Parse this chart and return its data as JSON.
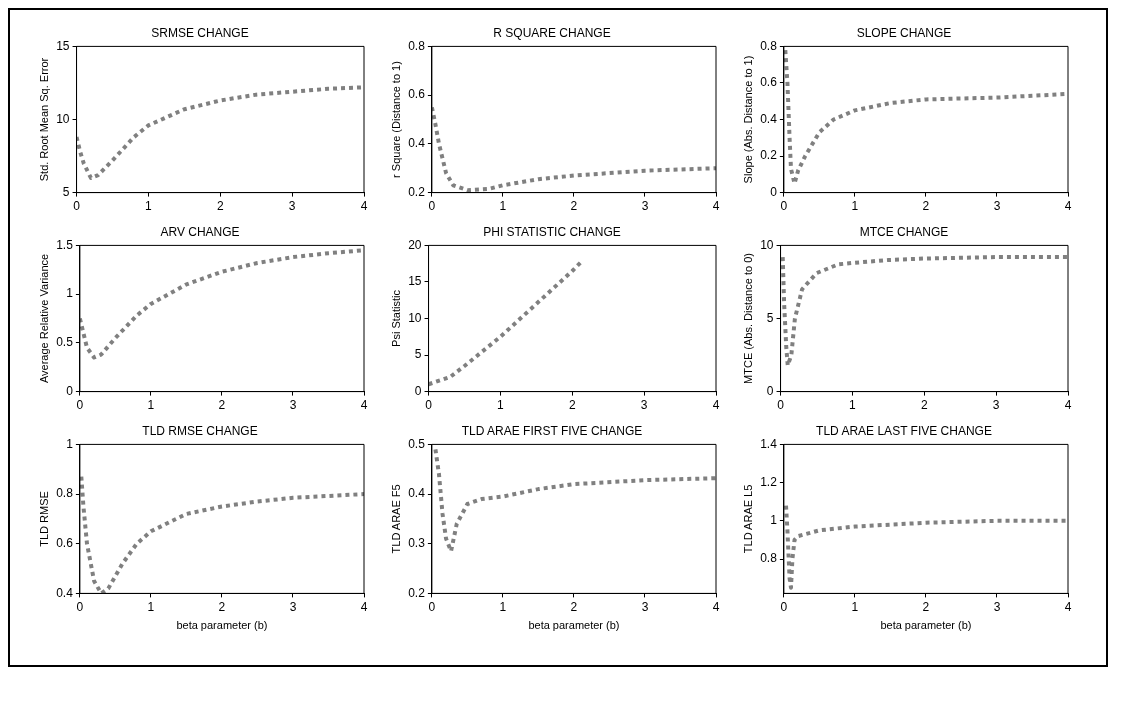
{
  "chart_data": [
    {
      "type": "line",
      "title": "SRMSE CHANGE",
      "ylabel": "Std. Root Mean Sq. Error",
      "xlim": [
        0,
        4
      ],
      "xticks": [
        0,
        1,
        2,
        3,
        4
      ],
      "ylim": [
        5,
        15
      ],
      "yticks": [
        5,
        10,
        15
      ],
      "grid": false,
      "line_style": "dotted",
      "x": [
        0,
        0.05,
        0.1,
        0.2,
        0.3,
        0.5,
        0.8,
        1,
        1.5,
        2,
        2.5,
        3,
        3.5,
        4
      ],
      "series": [
        {
          "color": "#808080",
          "values": [
            8.8,
            7.8,
            7.0,
            6.0,
            6.2,
            7.2,
            8.8,
            9.6,
            10.7,
            11.3,
            11.7,
            11.9,
            12.1,
            12.2
          ]
        }
      ]
    },
    {
      "type": "line",
      "title": "R SQUARE CHANGE",
      "ylabel": "r Square (Distance to 1)",
      "xlim": [
        0,
        4
      ],
      "xticks": [
        0,
        1,
        2,
        3,
        4
      ],
      "ylim": [
        0.2,
        0.8
      ],
      "yticks": [
        0.2,
        0.4,
        0.6,
        0.8
      ],
      "grid": false,
      "line_style": "dotted",
      "x": [
        0,
        0.05,
        0.1,
        0.2,
        0.3,
        0.5,
        0.8,
        1,
        1.5,
        2,
        2.5,
        3,
        3.5,
        4
      ],
      "series": [
        {
          "color": "#808080",
          "values": [
            0.55,
            0.48,
            0.4,
            0.28,
            0.23,
            0.21,
            0.215,
            0.23,
            0.255,
            0.27,
            0.28,
            0.29,
            0.295,
            0.3
          ]
        }
      ]
    },
    {
      "type": "line",
      "title": "SLOPE CHANGE",
      "ylabel": "Slope (Abs. Distance to 1)",
      "xlim": [
        0,
        4
      ],
      "xticks": [
        0,
        1,
        2,
        3,
        4
      ],
      "ylim": [
        0,
        0.8
      ],
      "yticks": [
        0,
        0.2,
        0.4,
        0.6,
        0.8
      ],
      "grid": false,
      "line_style": "dotted",
      "x": [
        0.02,
        0.05,
        0.08,
        0.1,
        0.15,
        0.2,
        0.3,
        0.5,
        0.7,
        1,
        1.5,
        2,
        3,
        4
      ],
      "series": [
        {
          "color": "#808080",
          "values": [
            0.78,
            0.6,
            0.3,
            0.13,
            0.05,
            0.12,
            0.2,
            0.33,
            0.4,
            0.45,
            0.49,
            0.51,
            0.52,
            0.54
          ]
        }
      ]
    },
    {
      "type": "line",
      "title": "ARV CHANGE",
      "ylabel": "Average Relative Variance",
      "xlim": [
        0,
        4
      ],
      "xticks": [
        0,
        1,
        2,
        3,
        4
      ],
      "ylim": [
        0,
        1.5
      ],
      "yticks": [
        0,
        0.5,
        1,
        1.5
      ],
      "grid": false,
      "line_style": "dotted",
      "x": [
        0,
        0.05,
        0.1,
        0.2,
        0.3,
        0.5,
        0.8,
        1,
        1.5,
        2,
        2.5,
        3,
        3.5,
        4
      ],
      "series": [
        {
          "color": "#808080",
          "values": [
            0.75,
            0.6,
            0.45,
            0.35,
            0.38,
            0.55,
            0.78,
            0.9,
            1.1,
            1.23,
            1.32,
            1.38,
            1.42,
            1.45
          ]
        }
      ]
    },
    {
      "type": "line",
      "title": "PHI STATISTIC CHANGE",
      "ylabel": "Psi Statistic",
      "xlim": [
        0,
        4
      ],
      "xticks": [
        0,
        1,
        2,
        3,
        4
      ],
      "ylim": [
        0,
        20
      ],
      "yticks": [
        0,
        5,
        10,
        15,
        20
      ],
      "grid": false,
      "line_style": "dotted",
      "x": [
        0,
        0.3,
        0.5,
        1,
        1.5,
        2,
        2.15
      ],
      "series": [
        {
          "color": "#808080",
          "values": [
            1,
            2,
            3.5,
            7.5,
            12,
            16.5,
            18
          ]
        }
      ]
    },
    {
      "type": "line",
      "title": "MTCE CHANGE",
      "ylabel": "MTCE (Abs. Distance to 0)",
      "xlim": [
        0,
        4
      ],
      "xticks": [
        0,
        1,
        2,
        3,
        4
      ],
      "ylim": [
        0,
        10
      ],
      "yticks": [
        0,
        5,
        10
      ],
      "grid": false,
      "line_style": "dotted",
      "x": [
        0.03,
        0.05,
        0.08,
        0.1,
        0.15,
        0.2,
        0.3,
        0.5,
        0.8,
        1,
        1.5,
        2,
        3,
        4
      ],
      "series": [
        {
          "color": "#808080",
          "values": [
            9.2,
            6,
            3,
            1.8,
            2.5,
            5,
            7,
            8.1,
            8.7,
            8.8,
            9,
            9.1,
            9.2,
            9.2
          ]
        }
      ]
    },
    {
      "type": "line",
      "title": "TLD RMSE CHANGE",
      "ylabel": "TLD RMSE",
      "xlabel": "beta parameter (b)",
      "xlim": [
        0,
        4
      ],
      "xticks": [
        0,
        1,
        2,
        3,
        4
      ],
      "ylim": [
        0.4,
        1
      ],
      "yticks": [
        0.4,
        0.6,
        0.8,
        1
      ],
      "grid": false,
      "line_style": "dotted",
      "x": [
        0.02,
        0.05,
        0.1,
        0.2,
        0.3,
        0.4,
        0.6,
        0.8,
        1,
        1.5,
        2,
        2.5,
        3,
        4
      ],
      "series": [
        {
          "color": "#808080",
          "values": [
            0.87,
            0.75,
            0.6,
            0.45,
            0.4,
            0.42,
            0.52,
            0.6,
            0.65,
            0.72,
            0.75,
            0.77,
            0.785,
            0.8
          ]
        }
      ]
    },
    {
      "type": "line",
      "title": "TLD ARAE FIRST FIVE CHANGE",
      "ylabel": "TLD ARAE F5",
      "xlabel": "beta parameter (b)",
      "xlim": [
        0,
        4
      ],
      "xticks": [
        0,
        1,
        2,
        3,
        4
      ],
      "ylim": [
        0.2,
        0.5
      ],
      "yticks": [
        0.2,
        0.3,
        0.4,
        0.5
      ],
      "grid": false,
      "line_style": "dotted",
      "x": [
        0.05,
        0.1,
        0.15,
        0.2,
        0.27,
        0.35,
        0.5,
        0.7,
        1,
        1.5,
        2,
        3,
        4
      ],
      "series": [
        {
          "color": "#808080",
          "values": [
            0.49,
            0.44,
            0.36,
            0.31,
            0.285,
            0.34,
            0.38,
            0.39,
            0.395,
            0.41,
            0.42,
            0.428,
            0.432
          ]
        }
      ]
    },
    {
      "type": "line",
      "title": "TLD ARAE LAST FIVE CHANGE",
      "ylabel": "TLD ARAE L5",
      "xlabel": "beta parameter (b)",
      "xlim": [
        0,
        4
      ],
      "xticks": [
        0,
        1,
        2,
        3,
        4
      ],
      "ylim": [
        0.62,
        1.4
      ],
      "yticks": [
        0.8,
        1,
        1.2,
        1.4
      ],
      "grid": false,
      "line_style": "dotted",
      "x": [
        0.03,
        0.05,
        0.08,
        0.1,
        0.12,
        0.15,
        0.2,
        0.5,
        1,
        2,
        3,
        4
      ],
      "series": [
        {
          "color": "#808080",
          "values": [
            1.08,
            0.95,
            0.7,
            0.65,
            0.8,
            0.9,
            0.92,
            0.95,
            0.97,
            0.99,
            1.0,
            1.0
          ]
        }
      ]
    }
  ]
}
